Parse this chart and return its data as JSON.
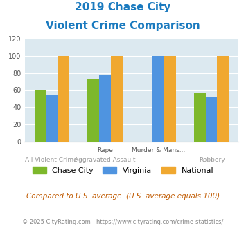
{
  "title_line1": "2019 Chase City",
  "title_line2": "Violent Crime Comparison",
  "chase_city": [
    60,
    73,
    0,
    56
  ],
  "virginia": [
    55,
    78,
    100,
    51
  ],
  "national": [
    100,
    100,
    100,
    100
  ],
  "colors": {
    "chase_city": "#7db82b",
    "virginia": "#4f94e0",
    "national": "#f0a830"
  },
  "ylim": [
    0,
    120
  ],
  "yticks": [
    0,
    20,
    40,
    60,
    80,
    100,
    120
  ],
  "title_color": "#1a7abf",
  "bg_color": "#dce9f0",
  "top_labels": [
    "",
    "Rape",
    "Murder & Mans...",
    ""
  ],
  "bot_labels": [
    "All Violent Crime",
    "Aggravated Assault",
    "",
    "Robbery"
  ],
  "legend_labels": [
    "Chase City",
    "Virginia",
    "National"
  ],
  "footnote1": "Compared to U.S. average. (U.S. average equals 100)",
  "footnote2": "© 2025 CityRating.com - https://www.cityrating.com/crime-statistics/",
  "footnote1_color": "#c05a00",
  "footnote2_color": "#888888"
}
